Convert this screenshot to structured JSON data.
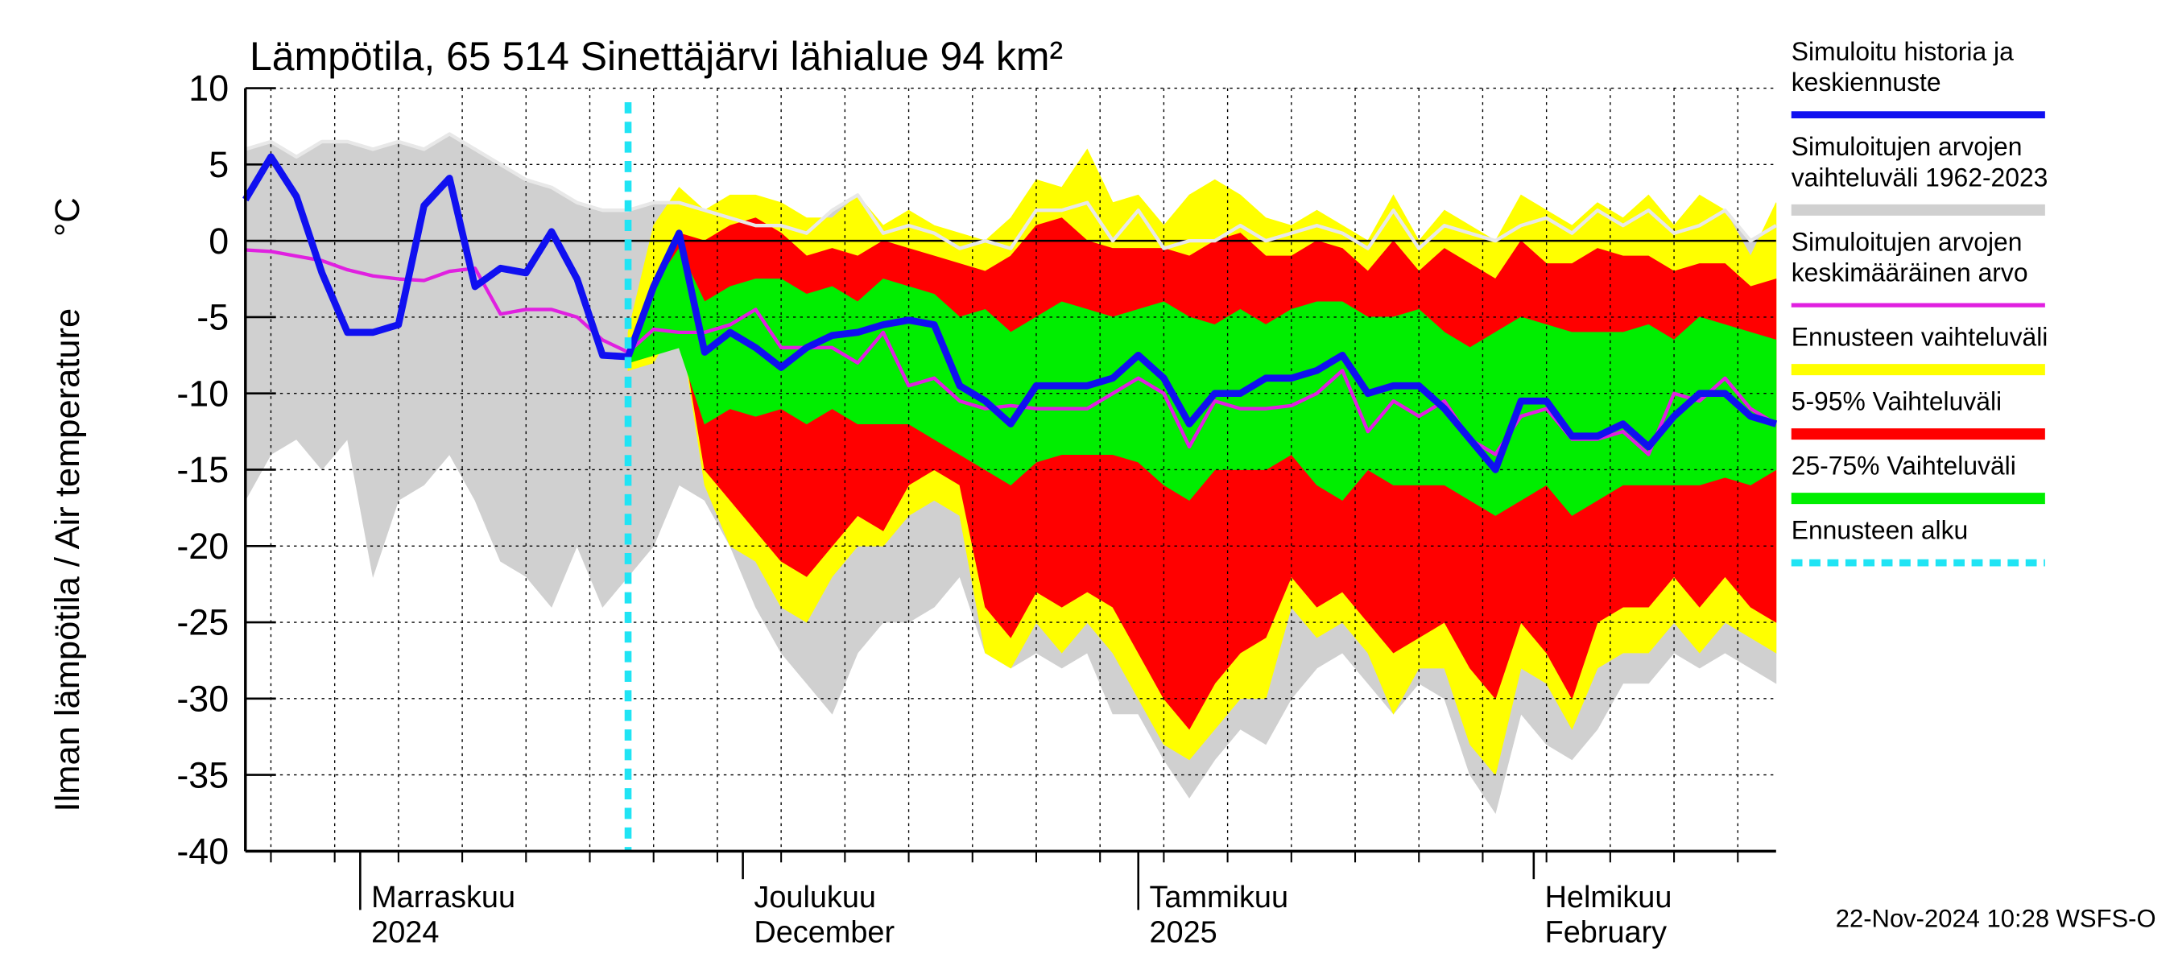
{
  "chart_data": {
    "type": "line",
    "title": "Lämpötila, 65 514 Sinettäjärvi lähialue 94 km²",
    "y_label": "Ilman lämpötila / Air temperature",
    "y_unit": "°C",
    "footer": "22-Nov-2024 10:28 WSFS-O",
    "ylim": [
      -40,
      10
    ],
    "yticks": [
      10,
      5,
      0,
      -5,
      -10,
      -15,
      -20,
      -25,
      -30,
      -35,
      -40
    ],
    "xlim": [
      0,
      120
    ],
    "xticks": [
      {
        "value": 9,
        "label": [
          "Marraskuu",
          "2024"
        ]
      },
      {
        "value": 39,
        "label": [
          "Joulukuu",
          "December"
        ]
      },
      {
        "value": 70,
        "label": [
          "Tammikuu",
          "2025"
        ]
      },
      {
        "value": 101,
        "label": [
          "Helmikuu",
          "February"
        ]
      }
    ],
    "xminorticks": [
      2,
      7,
      12,
      17,
      22,
      27,
      32,
      37,
      42,
      47,
      52,
      57,
      62,
      67,
      72,
      77,
      82,
      87,
      92,
      97,
      102,
      107,
      112,
      117
    ],
    "grid": true,
    "x": [
      0,
      2,
      4,
      6,
      8,
      10,
      12,
      14,
      16,
      18,
      20,
      22,
      24,
      26,
      28,
      30,
      32,
      34,
      36,
      38,
      40,
      42,
      44,
      46,
      48,
      50,
      52,
      54,
      56,
      58,
      60,
      62,
      64,
      66,
      68,
      70,
      72,
      74,
      76,
      78,
      80,
      82,
      84,
      86,
      88,
      90,
      92,
      94,
      96,
      98,
      100,
      102,
      104,
      106,
      108,
      110,
      112,
      114,
      116,
      118,
      120
    ],
    "series": [
      {
        "kind": "line",
        "name": [
          "Simuloitu historia ja",
          "keskiennuste"
        ],
        "color": "#1010f0",
        "values": [
          2.7,
          5.5,
          2.9,
          -2.1,
          -6,
          -6,
          -5.5,
          2.3,
          4.1,
          -3,
          -1.8,
          -2.1,
          0.6,
          -2.5,
          -7.5,
          -7.6,
          -3,
          0.5,
          -7.3,
          -6,
          -7,
          -8.3,
          -7,
          -6.2,
          -6,
          -5.5,
          -5.2,
          -5.5,
          -9.5,
          -10.5,
          -12,
          -9.5,
          -9.5,
          -9.5,
          -9,
          -7.5,
          -9,
          -12,
          -10,
          -10,
          -9,
          -9,
          -8.5,
          -7.5,
          -10,
          -9.5,
          -9.5,
          -11,
          -13,
          -15,
          -10.5,
          -10.5,
          -12.8,
          -12.8,
          -12,
          -13.5,
          -11.5,
          -10,
          -10,
          -11.5,
          -12
        ]
      },
      {
        "kind": "band",
        "name": [
          "Simuloitujen arvojen",
          "vaihteluväli 1962-2023"
        ],
        "color": "#d0d0d0",
        "edge": "#e8e8e8",
        "high": [
          6,
          6.5,
          5.5,
          6.5,
          6.5,
          6,
          6.5,
          6,
          7,
          6,
          5,
          4,
          3.5,
          2.5,
          2,
          2,
          2.5,
          2.5,
          2,
          1.5,
          1,
          1,
          0.5,
          2,
          3,
          0.5,
          1,
          0.5,
          -0.5,
          0,
          -0.5,
          2,
          2,
          2.5,
          0,
          2,
          -0.5,
          0,
          0,
          1,
          0,
          0.5,
          1,
          0.5,
          -0.5,
          2,
          -0.5,
          1,
          0.5,
          0,
          1,
          1.5,
          0.5,
          2,
          1,
          2,
          0.5,
          1,
          2,
          0,
          1
        ],
        "low": [
          -17,
          -14,
          -13,
          -15,
          -13,
          -22,
          -17,
          -16,
          -14,
          -17,
          -21,
          -22,
          -24,
          -20,
          -24,
          -22,
          -20,
          -16,
          -17,
          -20,
          -24,
          -27,
          -29,
          -31,
          -27,
          -25,
          -25,
          -24,
          -22,
          -27,
          -28,
          -27,
          -28,
          -27,
          -31,
          -31,
          -34,
          -36.5,
          -34,
          -32,
          -33,
          -30,
          -28,
          -27,
          -29,
          -31,
          -29,
          -30,
          -35,
          -37.5,
          -31,
          -33,
          -34,
          -32,
          -29,
          -29,
          -27,
          -28,
          -27,
          -28,
          -29
        ]
      },
      {
        "kind": "line",
        "name": [
          "Simuloitujen arvojen",
          "keskimääräinen arvo"
        ],
        "color": "#e020e0",
        "values": [
          -0.6,
          -0.7,
          -1,
          -1.3,
          -1.9,
          -2.3,
          -2.5,
          -2.6,
          -2,
          -1.8,
          -4.8,
          -4.5,
          -4.5,
          -5,
          -6.5,
          -7.3,
          -5.8,
          -6,
          -6,
          -5.5,
          -4.5,
          -7,
          -7,
          -7,
          -8,
          -6,
          -9.5,
          -9,
          -10.5,
          -11,
          -10.8,
          -11,
          -11,
          -11,
          -10,
          -9,
          -10,
          -13.5,
          -10.5,
          -11,
          -11,
          -10.8,
          -10,
          -8.5,
          -12.5,
          -10.5,
          -11.5,
          -10.5,
          -13,
          -14,
          -11.5,
          -11,
          -13,
          -13,
          -12.5,
          -14,
          -10,
          -10.5,
          -9,
          -11,
          -12
        ]
      },
      {
        "kind": "band",
        "name": [
          "Ennusteen vaihteluväli"
        ],
        "color": "#ffff00",
        "high": [
          null,
          null,
          null,
          null,
          null,
          null,
          null,
          null,
          null,
          null,
          null,
          null,
          null,
          null,
          null,
          -6,
          1,
          3.5,
          2,
          3,
          3,
          2.5,
          1.5,
          1.5,
          3,
          1,
          2,
          1,
          0.5,
          0,
          1.5,
          4,
          3.5,
          6,
          2.5,
          3,
          1,
          3,
          4,
          3,
          1.5,
          1,
          2,
          1,
          0,
          3,
          0,
          2,
          1,
          0,
          3,
          2,
          1,
          2.5,
          1.5,
          3,
          1,
          3,
          2,
          -1,
          2.5
        ],
        "low": [
          null,
          null,
          null,
          null,
          null,
          null,
          null,
          null,
          null,
          null,
          null,
          null,
          null,
          null,
          null,
          -8.5,
          -8,
          -5,
          -16,
          -20,
          -21,
          -24,
          -25,
          -22,
          -20,
          -20,
          -18,
          -17,
          -18,
          -27,
          -28,
          -25,
          -27,
          -25,
          -27,
          -30,
          -33,
          -34,
          -32,
          -30,
          -30,
          -24,
          -26,
          -25,
          -27,
          -31,
          -28,
          -28,
          -33,
          -35,
          -28,
          -29,
          -32,
          -28,
          -27,
          -27,
          -25,
          -27,
          -25,
          -26,
          -27
        ]
      },
      {
        "kind": "band",
        "name": [
          "5-95% Vaihteluväli"
        ],
        "color": "#ff0000",
        "high": [
          null,
          null,
          null,
          null,
          null,
          null,
          null,
          null,
          null,
          null,
          null,
          null,
          null,
          null,
          null,
          -7.5,
          -3,
          0.5,
          0,
          1,
          1.5,
          0.5,
          -1,
          -0.5,
          -1,
          0,
          -0.5,
          -1,
          -1.5,
          -2,
          -1,
          1,
          1.5,
          0,
          -0.5,
          -0.5,
          -0.5,
          -1,
          0,
          0.5,
          -1,
          -1,
          0,
          -0.5,
          -2,
          0,
          -2,
          -0.5,
          -1.5,
          -2.5,
          0,
          -1.5,
          -1.5,
          -0.5,
          -1,
          -1,
          -2,
          -1.5,
          -1.5,
          -3,
          -2.5
        ],
        "low": [
          null,
          null,
          null,
          null,
          null,
          null,
          null,
          null,
          null,
          null,
          null,
          null,
          null,
          null,
          null,
          -8,
          -7.5,
          -5,
          -15,
          -17,
          -19,
          -21,
          -22,
          -20,
          -18,
          -19,
          -16,
          -15,
          -16,
          -24,
          -26,
          -23,
          -24,
          -23,
          -24,
          -27,
          -30,
          -32,
          -29,
          -27,
          -26,
          -22,
          -24,
          -23,
          -25,
          -27,
          -26,
          -25,
          -28,
          -30,
          -25,
          -27,
          -30,
          -25,
          -24,
          -24,
          -22,
          -24,
          -22,
          -24,
          -25
        ]
      },
      {
        "kind": "band",
        "name": [
          "25-75% Vaihteluväli"
        ],
        "color": "#00ee00",
        "high": [
          null,
          null,
          null,
          null,
          null,
          null,
          null,
          null,
          null,
          null,
          null,
          null,
          null,
          null,
          null,
          -7.5,
          -3,
          -0.5,
          -4,
          -3,
          -2.5,
          -2.5,
          -3.5,
          -3,
          -4,
          -2.5,
          -3,
          -3.5,
          -5,
          -4.5,
          -6,
          -5,
          -4,
          -4.5,
          -5,
          -4.5,
          -4,
          -5,
          -5.5,
          -4.5,
          -5.5,
          -4.5,
          -4,
          -4,
          -5,
          -5,
          -4.5,
          -6,
          -7,
          -6,
          -5,
          -5.5,
          -6,
          -6,
          -6,
          -5.5,
          -6.5,
          -5,
          -5.5,
          -6,
          -6.5
        ],
        "low": [
          null,
          null,
          null,
          null,
          null,
          null,
          null,
          null,
          null,
          null,
          null,
          null,
          null,
          null,
          null,
          -8,
          -7.5,
          -7,
          -12,
          -11,
          -11.5,
          -11,
          -12,
          -11,
          -12,
          -12,
          -12,
          -13,
          -14,
          -15,
          -16,
          -14.5,
          -14,
          -14,
          -14,
          -14.5,
          -16,
          -17,
          -15,
          -15,
          -15,
          -14,
          -16,
          -17,
          -15,
          -16,
          -16,
          -16,
          -17,
          -18,
          -17,
          -16,
          -18,
          -17,
          -16,
          -16,
          -16,
          -16,
          -15.5,
          -16,
          -15
        ]
      },
      {
        "kind": "vline",
        "name": [
          "Ennusteen alku"
        ],
        "color": "#20e4f4",
        "x": 30
      }
    ]
  }
}
